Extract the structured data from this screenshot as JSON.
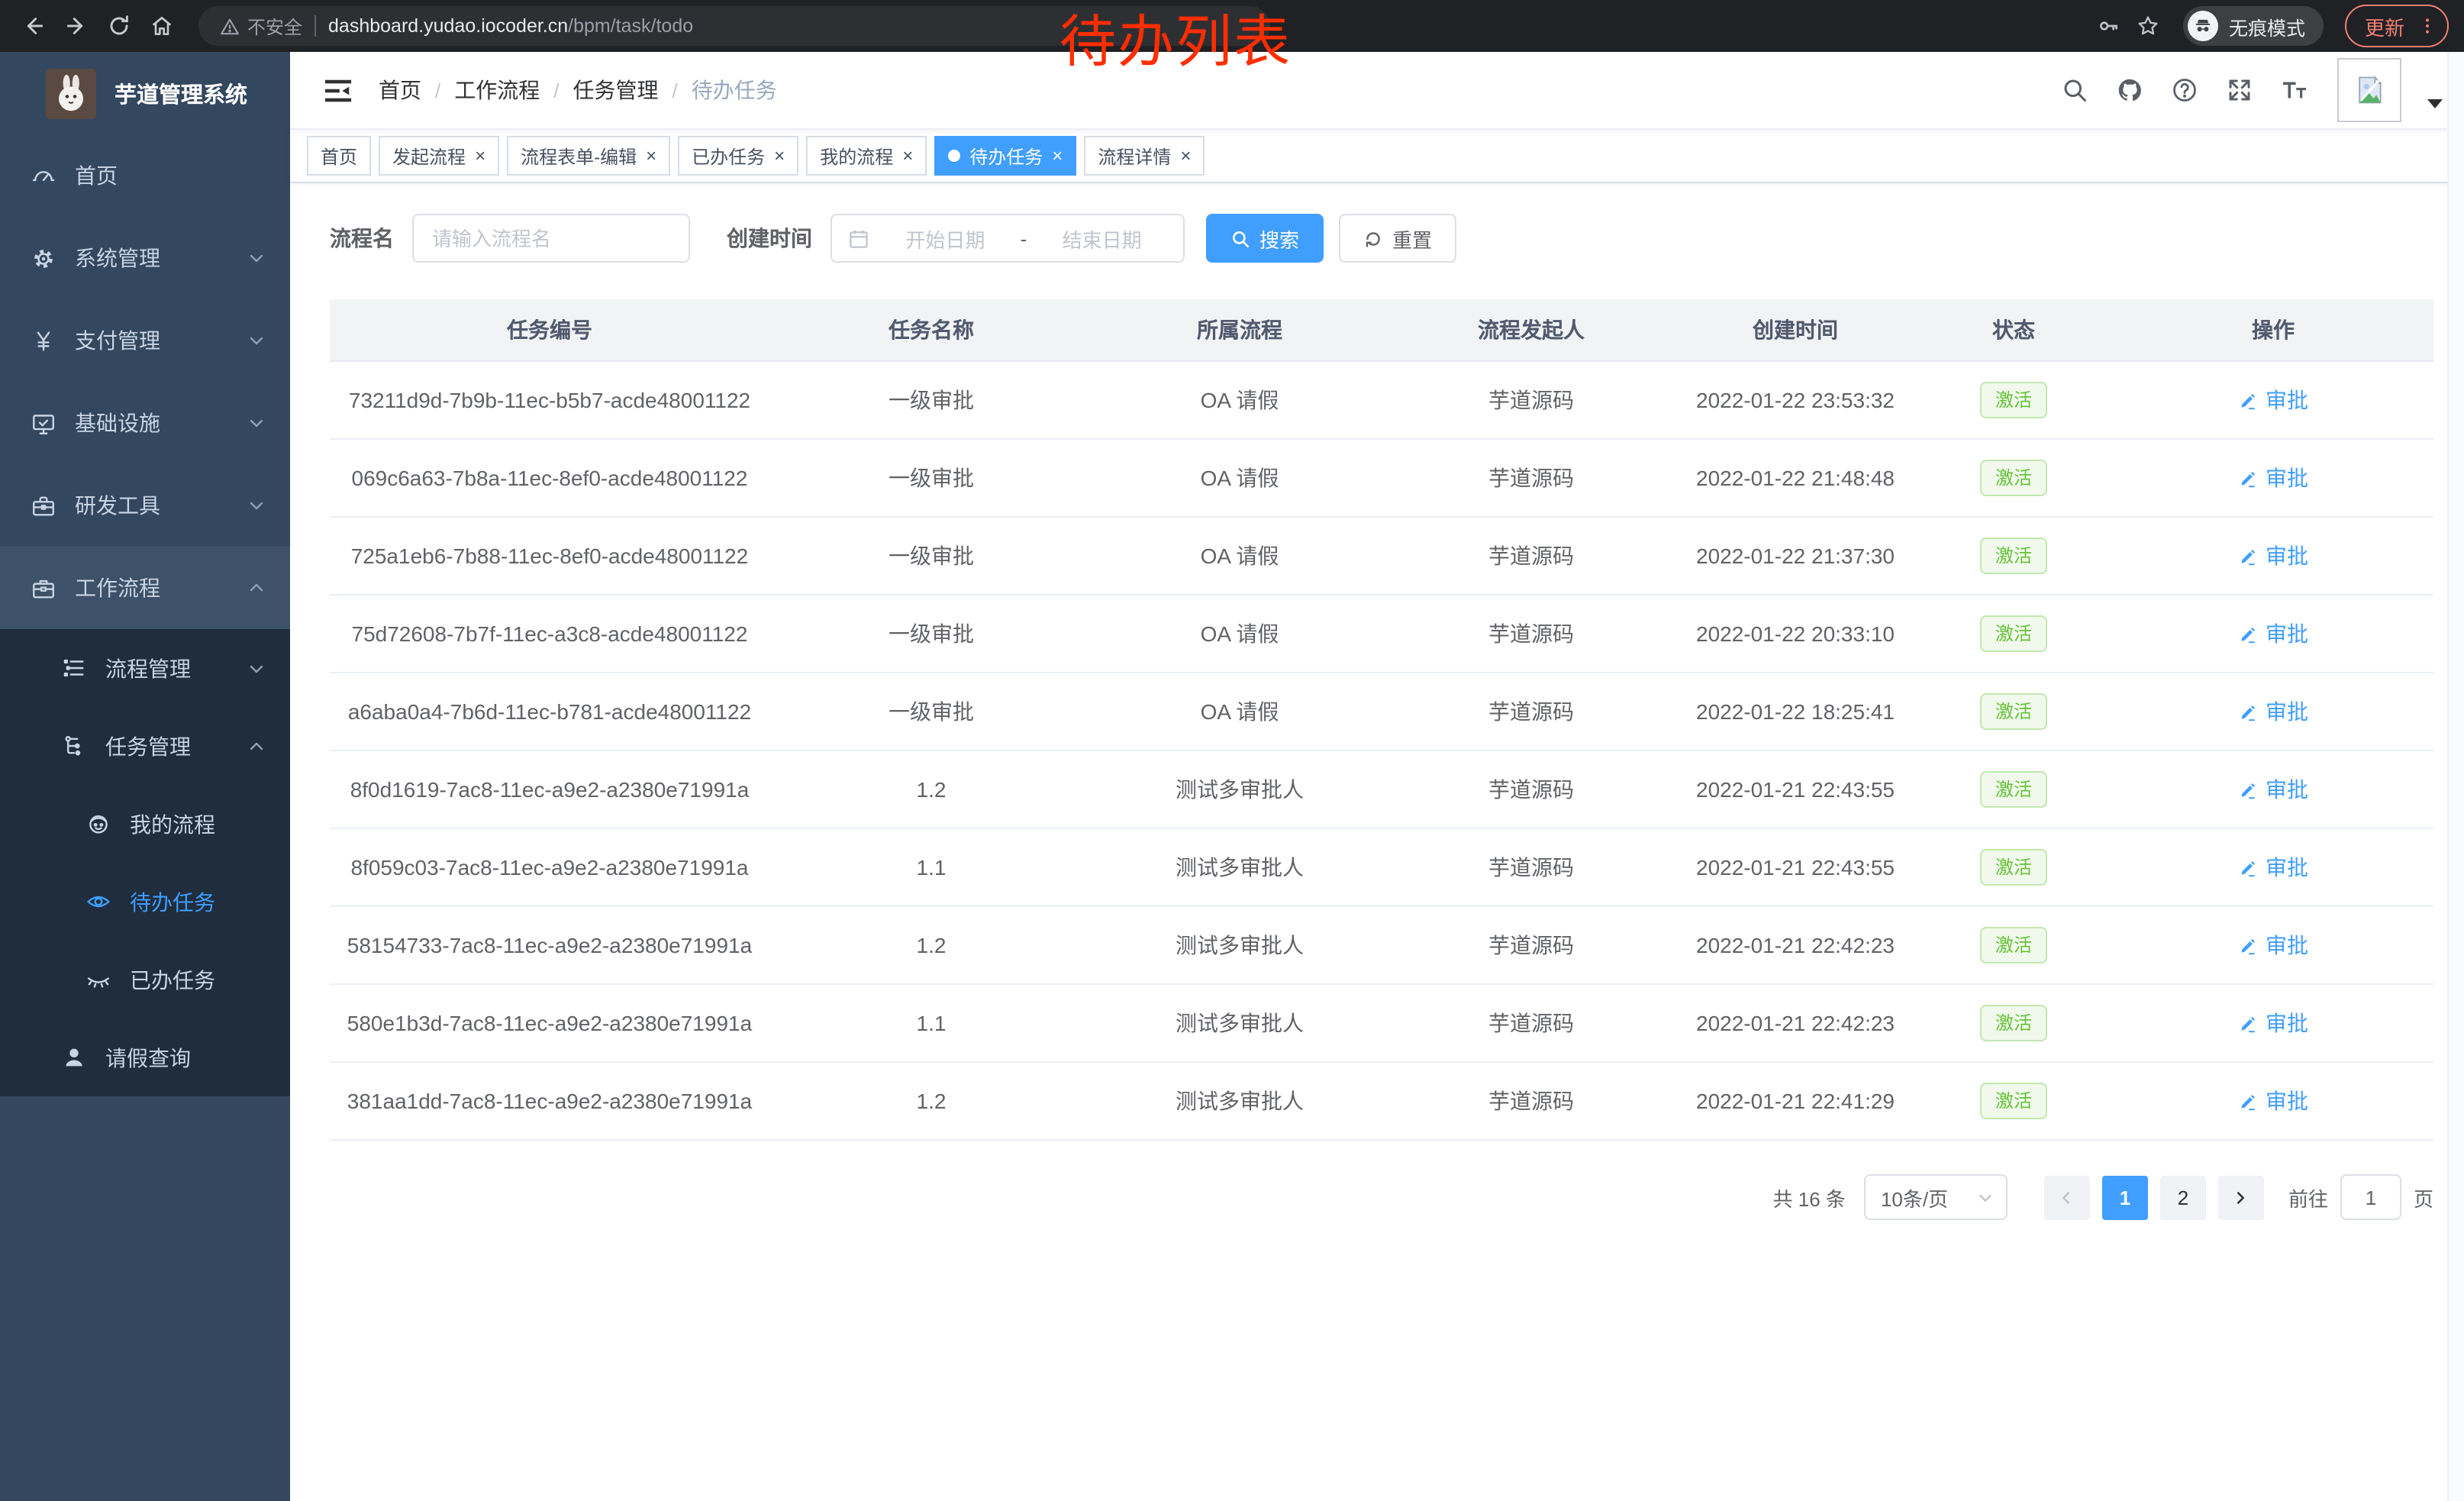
{
  "browser": {
    "security_label": "不安全",
    "url_domain": "dashboard.yudao.iocoder.cn",
    "url_path": "/bpm/task/todo",
    "incognito_label": "无痕模式",
    "update_label": "更新"
  },
  "annotation": {
    "text": "待办列表",
    "color": "#ff2e00"
  },
  "sidebar": {
    "title": "芋道管理系统",
    "items": [
      {
        "label": "首页",
        "icon": "dashboard-icon",
        "depth": 0
      },
      {
        "label": "系统管理",
        "icon": "gear-icon",
        "depth": 0,
        "chevron": "down"
      },
      {
        "label": "支付管理",
        "icon": "yen-icon",
        "depth": 0,
        "chevron": "down"
      },
      {
        "label": "基础设施",
        "icon": "monitor-icon",
        "depth": 0,
        "chevron": "down"
      },
      {
        "label": "研发工具",
        "icon": "toolbox-icon",
        "depth": 0,
        "chevron": "down"
      },
      {
        "label": "工作流程",
        "icon": "briefcase-icon",
        "depth": 0,
        "chevron": "up",
        "open": true
      },
      {
        "label": "流程管理",
        "icon": "list-tree-icon",
        "depth": 1,
        "chevron": "down",
        "submenu": true
      },
      {
        "label": "任务管理",
        "icon": "flow-icon",
        "depth": 1,
        "chevron": "up",
        "submenu": true
      },
      {
        "label": "我的流程",
        "icon": "robot-icon",
        "depth": 2,
        "submenu": true
      },
      {
        "label": "待办任务",
        "icon": "eye-open-icon",
        "depth": 2,
        "submenu": true,
        "active": true
      },
      {
        "label": "已办任务",
        "icon": "eye-closed-icon",
        "depth": 2,
        "submenu": true
      },
      {
        "label": "请假查询",
        "icon": "user-icon",
        "depth": 1,
        "submenu": true
      }
    ]
  },
  "navbar": {
    "breadcrumb": [
      {
        "label": "首页"
      },
      {
        "label": "工作流程"
      },
      {
        "label": "任务管理"
      },
      {
        "label": "待办任务",
        "current": true
      }
    ],
    "icons": [
      "search-icon",
      "github-icon",
      "question-icon",
      "fullscreen-icon",
      "font-size-icon"
    ]
  },
  "tabs": [
    {
      "label": "首页",
      "closable": false
    },
    {
      "label": "发起流程",
      "closable": true
    },
    {
      "label": "流程表单-编辑",
      "closable": true
    },
    {
      "label": "已办任务",
      "closable": true
    },
    {
      "label": "我的流程",
      "closable": true
    },
    {
      "label": "待办任务",
      "closable": true,
      "active": true
    },
    {
      "label": "流程详情",
      "closable": true
    }
  ],
  "filters": {
    "process_name_label": "流程名",
    "process_name_placeholder": "请输入流程名",
    "create_time_label": "创建时间",
    "start_date_placeholder": "开始日期",
    "range_separator": "-",
    "end_date_placeholder": "结束日期",
    "search_label": "搜索",
    "reset_label": "重置"
  },
  "table": {
    "columns": [
      "任务编号",
      "任务名称",
      "所属流程",
      "流程发起人",
      "创建时间",
      "状态",
      "操作"
    ],
    "rows": [
      {
        "id": "73211d9d-7b9b-11ec-b5b7-acde48001122",
        "name": "一级审批",
        "process": "OA 请假",
        "initiator": "芋道源码",
        "created": "2022-01-22 23:53:32",
        "status": "激活",
        "action": "审批"
      },
      {
        "id": "069c6a63-7b8a-11ec-8ef0-acde48001122",
        "name": "一级审批",
        "process": "OA 请假",
        "initiator": "芋道源码",
        "created": "2022-01-22 21:48:48",
        "status": "激活",
        "action": "审批"
      },
      {
        "id": "725a1eb6-7b88-11ec-8ef0-acde48001122",
        "name": "一级审批",
        "process": "OA 请假",
        "initiator": "芋道源码",
        "created": "2022-01-22 21:37:30",
        "status": "激活",
        "action": "审批"
      },
      {
        "id": "75d72608-7b7f-11ec-a3c8-acde48001122",
        "name": "一级审批",
        "process": "OA 请假",
        "initiator": "芋道源码",
        "created": "2022-01-22 20:33:10",
        "status": "激活",
        "action": "审批"
      },
      {
        "id": "a6aba0a4-7b6d-11ec-b781-acde48001122",
        "name": "一级审批",
        "process": "OA 请假",
        "initiator": "芋道源码",
        "created": "2022-01-22 18:25:41",
        "status": "激活",
        "action": "审批"
      },
      {
        "id": "8f0d1619-7ac8-11ec-a9e2-a2380e71991a",
        "name": "1.2",
        "process": "测试多审批人",
        "initiator": "芋道源码",
        "created": "2022-01-21 22:43:55",
        "status": "激活",
        "action": "审批"
      },
      {
        "id": "8f059c03-7ac8-11ec-a9e2-a2380e71991a",
        "name": "1.1",
        "process": "测试多审批人",
        "initiator": "芋道源码",
        "created": "2022-01-21 22:43:55",
        "status": "激活",
        "action": "审批"
      },
      {
        "id": "58154733-7ac8-11ec-a9e2-a2380e71991a",
        "name": "1.2",
        "process": "测试多审批人",
        "initiator": "芋道源码",
        "created": "2022-01-21 22:42:23",
        "status": "激活",
        "action": "审批"
      },
      {
        "id": "580e1b3d-7ac8-11ec-a9e2-a2380e71991a",
        "name": "1.1",
        "process": "测试多审批人",
        "initiator": "芋道源码",
        "created": "2022-01-21 22:42:23",
        "status": "激活",
        "action": "审批"
      },
      {
        "id": "381aa1dd-7ac8-11ec-a9e2-a2380e71991a",
        "name": "1.2",
        "process": "测试多审批人",
        "initiator": "芋道源码",
        "created": "2022-01-21 22:41:29",
        "status": "激活",
        "action": "审批"
      }
    ]
  },
  "pagination": {
    "total_label": "共 16 条",
    "page_size_value": "10条/页",
    "pages": [
      "1",
      "2"
    ],
    "active_page": "1",
    "goto_label": "前往",
    "goto_value": "1",
    "page_suffix": "页"
  },
  "colors": {
    "accent": "#409eff",
    "annotation": "#ff2e00",
    "status_active_text": "#67c23a",
    "status_active_bg": "#f0f9eb",
    "status_active_border": "#c2e7b0",
    "sidebar_bg": "#33475f",
    "submenu_bg": "#1f2d3d"
  }
}
